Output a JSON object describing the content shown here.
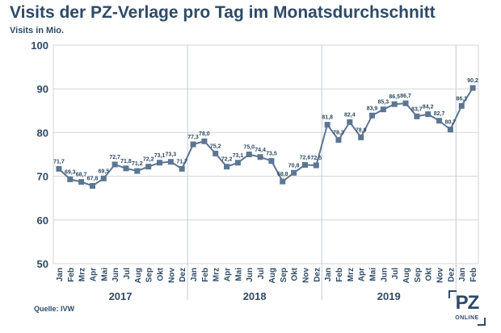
{
  "header": {
    "title": "Visits der PZ-Verlage pro Tag im Monatsdurchschnitt",
    "subtitle": "Visits in Mio."
  },
  "footer": {
    "source": "Quelle: IVW",
    "logo_main": "PZ",
    "logo_sub": "ONLINE"
  },
  "chart_data": {
    "type": "line",
    "ylim": [
      50,
      100
    ],
    "yticks": [
      50,
      60,
      70,
      80,
      90,
      100
    ],
    "grid": true,
    "years": [
      "2017",
      "2018",
      "2019"
    ],
    "months": [
      "Jan",
      "Feb",
      "Mrz",
      "Apr",
      "Mai",
      "Jun",
      "Jul",
      "Aug",
      "Sep",
      "Okt",
      "Nov",
      "Dez",
      "Jan",
      "Feb",
      "Mrz",
      "Apr",
      "Mai",
      "Jun",
      "Jul",
      "Aug",
      "Sep",
      "Okt",
      "Nov",
      "Dez",
      "Jan",
      "Feb",
      "Mrz",
      "Apr",
      "Mai",
      "Jun",
      "Jul",
      "Aug",
      "Sep",
      "Okt",
      "Nov",
      "Dez",
      "Jan",
      "Feb"
    ],
    "values": [
      71.7,
      69.3,
      68.7,
      67.8,
      69.5,
      72.7,
      71.8,
      71.2,
      72.2,
      73.1,
      73.3,
      71.7,
      77.3,
      78.0,
      75.2,
      72.2,
      73.1,
      75.0,
      74.4,
      73.5,
      68.8,
      70.8,
      72.6,
      72.5,
      81.8,
      78.3,
      82.4,
      78.9,
      83.9,
      85.3,
      86.5,
      86.7,
      83.7,
      84.2,
      82.7,
      80.7,
      86.1,
      90.2
    ],
    "labels": [
      "71,7",
      "69,3",
      "68,7",
      "67,8",
      "69,5",
      "72,7",
      "71,8",
      "71,2",
      "72,2",
      "73,1",
      "73,3",
      "71,7",
      "77,3",
      "78,0",
      "75,2",
      "72,2",
      "73,1",
      "75,0",
      "74,4",
      "73,5",
      "68,8",
      "70,8",
      "72,6",
      "72,5",
      "81,8",
      "78,3",
      "82,4",
      "78,9",
      "83,9",
      "85,3",
      "86,5",
      "86,7",
      "83,7",
      "84,2",
      "82,7",
      "80,7",
      "86,1",
      "90,2"
    ],
    "line_color": "#5b7693",
    "text_color": "#2e4a66",
    "grid_color": "#d6d6d6"
  }
}
